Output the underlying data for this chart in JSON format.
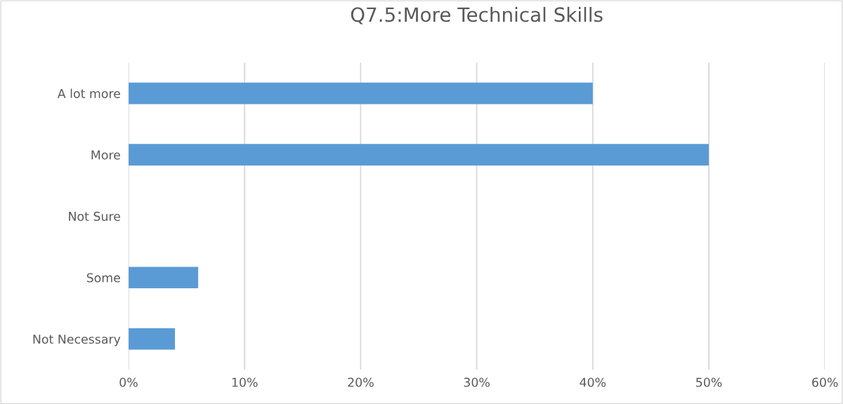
{
  "chart_data": {
    "type": "bar",
    "orientation": "horizontal",
    "title": "Q7.5:More Technical Skills",
    "categories": [
      "A lot more",
      "More",
      "Not Sure",
      "Some",
      "Not Necessary"
    ],
    "values": [
      40,
      50,
      0,
      6,
      4
    ],
    "color": "#5b9bd5",
    "xlim": [
      0,
      60
    ],
    "xticks": [
      {
        "value": 0,
        "label": "0%"
      },
      {
        "value": 10,
        "label": "10%"
      },
      {
        "value": 20,
        "label": "20%"
      },
      {
        "value": 30,
        "label": "30%"
      },
      {
        "value": 40,
        "label": "40%"
      },
      {
        "value": 50,
        "label": "50%"
      },
      {
        "value": 60,
        "label": "60%"
      }
    ],
    "grid": "x",
    "legend": false
  }
}
